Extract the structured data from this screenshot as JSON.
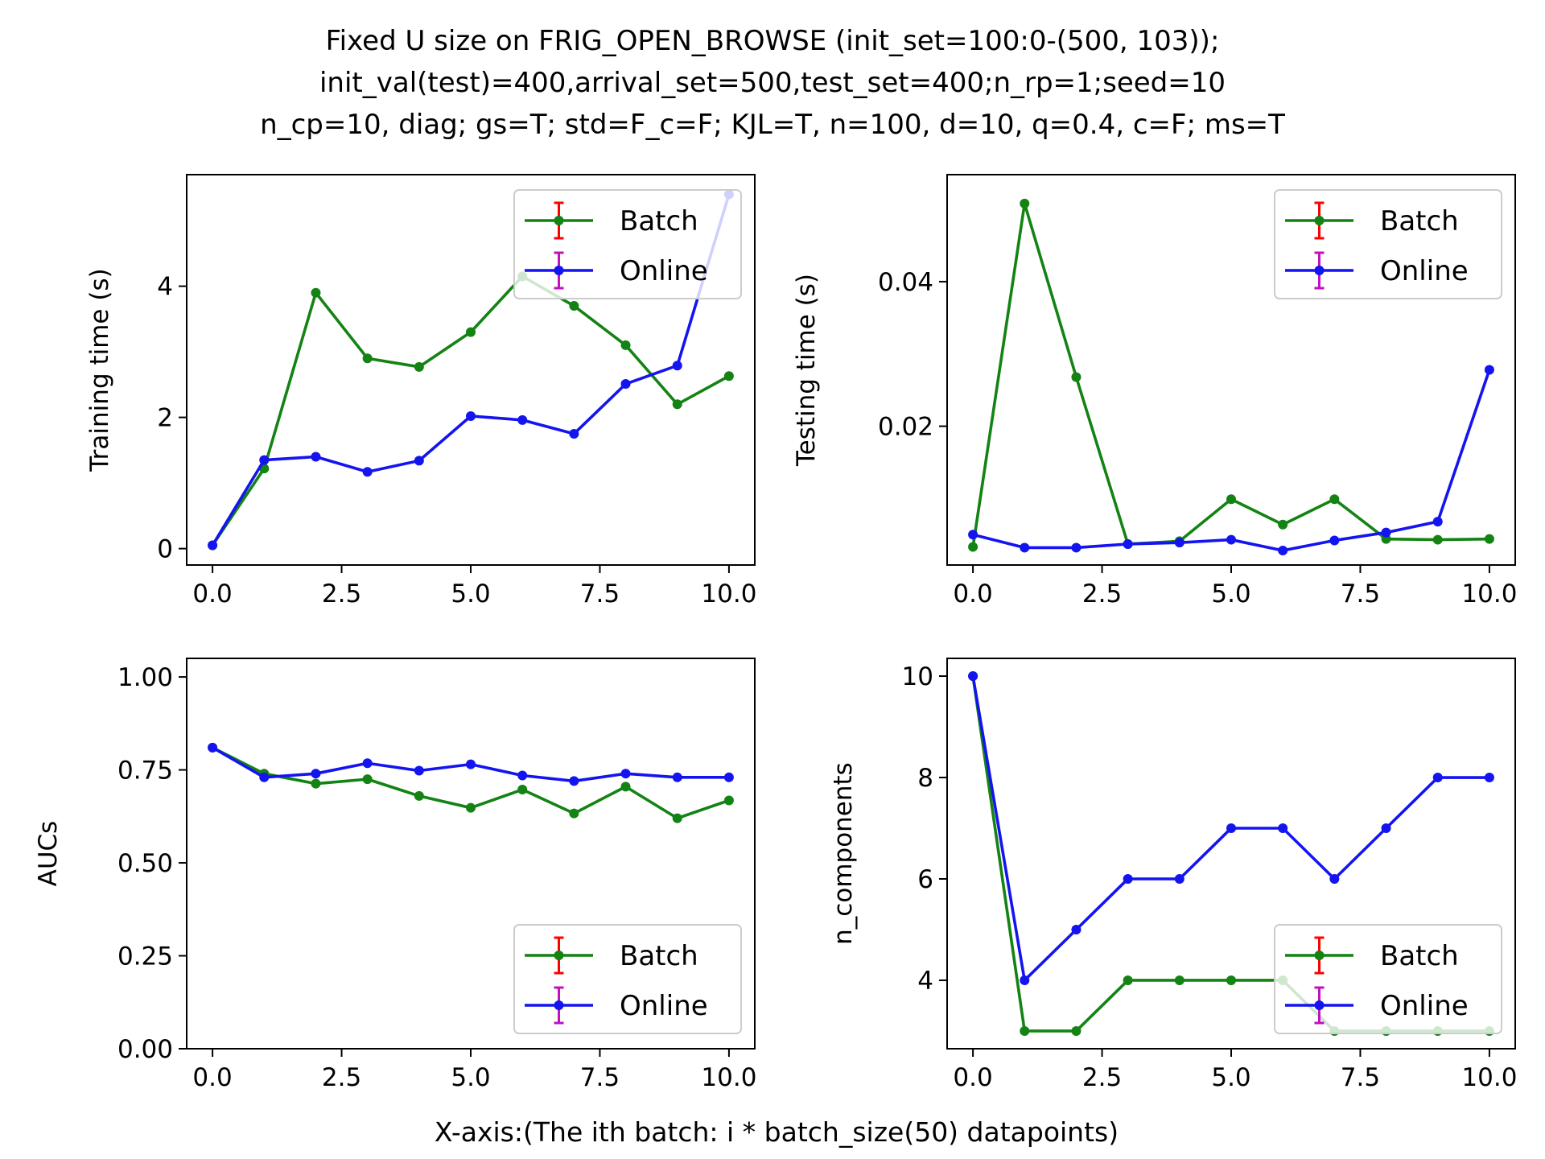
{
  "figure": {
    "title_lines": [
      "Fixed U size on FRIG_OPEN_BROWSE (init_set=100:0-(500, 103));",
      "init_val(test)=400,arrival_set=500,test_set=400;n_rp=1;seed=10",
      "n_cp=10, diag; gs=T; std=F_c=F; KJL=T, n=100, d=10, q=0.4, c=F; ms=T"
    ],
    "xlabel": "X-axis:(The ith batch: i * batch_size(50) datapoints)"
  },
  "colors": {
    "batch": "#138313",
    "online": "#1414f0",
    "batch_errorbar": "#ff0000",
    "online_errorbar": "#c010c0"
  },
  "chart_data": [
    {
      "type": "line",
      "ylabel": "Training time (s)",
      "x": [
        0,
        1,
        2,
        3,
        4,
        5,
        6,
        7,
        8,
        9,
        10
      ],
      "xlim": [
        -0.5,
        10.5
      ],
      "ylim": [
        -0.25,
        5.7
      ],
      "xticks": [
        0,
        2.5,
        5,
        7.5,
        10
      ],
      "xtick_labels": [
        "0.0",
        "2.5",
        "5.0",
        "7.5",
        "10.0"
      ],
      "yticks": [
        0,
        2,
        4
      ],
      "ytick_labels": [
        "0",
        "2",
        "4"
      ],
      "legend_position": "upper right",
      "series": [
        {
          "name": "Batch",
          "color": "#138313",
          "values": [
            0.05,
            1.22,
            3.9,
            2.9,
            2.77,
            3.3,
            4.15,
            3.7,
            3.1,
            2.2,
            2.63
          ]
        },
        {
          "name": "Online",
          "color": "#1414f0",
          "values": [
            0.05,
            1.35,
            1.4,
            1.17,
            1.34,
            2.02,
            1.96,
            1.75,
            2.51,
            2.79,
            5.4
          ]
        }
      ]
    },
    {
      "type": "line",
      "ylabel": "Testing time (s)",
      "x": [
        0,
        1,
        2,
        3,
        4,
        5,
        6,
        7,
        8,
        9,
        10
      ],
      "xlim": [
        -0.5,
        10.5
      ],
      "ylim": [
        0.0008,
        0.0548
      ],
      "xticks": [
        0,
        2.5,
        5,
        7.5,
        10
      ],
      "xtick_labels": [
        "0.0",
        "2.5",
        "5.0",
        "7.5",
        "10.0"
      ],
      "yticks": [
        0.02,
        0.04
      ],
      "ytick_labels": [
        "0.02",
        "0.04"
      ],
      "legend_position": "upper right",
      "series": [
        {
          "name": "Batch",
          "color": "#138313",
          "values": [
            0.0033,
            0.0508,
            0.0268,
            0.0037,
            0.0041,
            0.0099,
            0.0064,
            0.0099,
            0.0044,
            0.0043,
            0.0044
          ]
        },
        {
          "name": "Online",
          "color": "#1414f0",
          "values": [
            0.005,
            0.0032,
            0.0032,
            0.0037,
            0.0039,
            0.0043,
            0.0028,
            0.0042,
            0.0053,
            0.0068,
            0.0278
          ]
        }
      ]
    },
    {
      "type": "line",
      "ylabel": "AUCs",
      "x": [
        0,
        1,
        2,
        3,
        4,
        5,
        6,
        7,
        8,
        9,
        10
      ],
      "xlim": [
        -0.5,
        10.5
      ],
      "ylim": [
        0.0,
        1.05
      ],
      "xticks": [
        0,
        2.5,
        5,
        7.5,
        10
      ],
      "xtick_labels": [
        "0.0",
        "2.5",
        "5.0",
        "7.5",
        "10.0"
      ],
      "yticks": [
        0,
        0.25,
        0.5,
        0.75,
        1.0
      ],
      "ytick_labels": [
        "0.00",
        "0.25",
        "0.50",
        "0.75",
        "1.00"
      ],
      "legend_position": "lower right",
      "series": [
        {
          "name": "Batch",
          "color": "#138313",
          "values": [
            0.81,
            0.74,
            0.713,
            0.725,
            0.68,
            0.648,
            0.697,
            0.633,
            0.705,
            0.62,
            0.668
          ]
        },
        {
          "name": "Online",
          "color": "#1414f0",
          "values": [
            0.81,
            0.73,
            0.74,
            0.768,
            0.748,
            0.765,
            0.735,
            0.72,
            0.74,
            0.73,
            0.73
          ]
        }
      ]
    },
    {
      "type": "line",
      "ylabel": "n_components",
      "x": [
        0,
        1,
        2,
        3,
        4,
        5,
        6,
        7,
        8,
        9,
        10
      ],
      "xlim": [
        -0.5,
        10.5
      ],
      "ylim": [
        2.65,
        10.35
      ],
      "xticks": [
        0,
        2.5,
        5,
        7.5,
        10
      ],
      "xtick_labels": [
        "0.0",
        "2.5",
        "5.0",
        "7.5",
        "10.0"
      ],
      "yticks": [
        4,
        6,
        8,
        10
      ],
      "ytick_labels": [
        "4",
        "6",
        "8",
        "10"
      ],
      "legend_position": "lower right",
      "series": [
        {
          "name": "Batch",
          "color": "#138313",
          "values": [
            10,
            3,
            3,
            4,
            4,
            4,
            4,
            3,
            3,
            3,
            3
          ]
        },
        {
          "name": "Online",
          "color": "#1414f0",
          "values": [
            10,
            4,
            5,
            6,
            6,
            7,
            7,
            6,
            7,
            8,
            8
          ]
        }
      ]
    }
  ]
}
